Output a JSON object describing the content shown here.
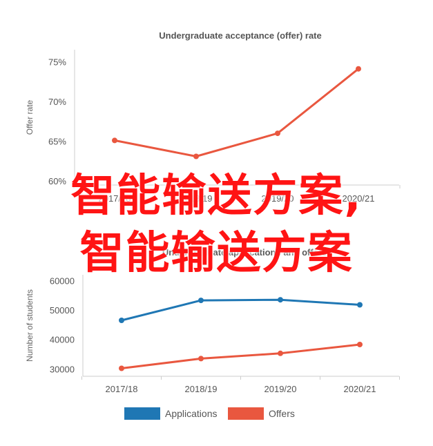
{
  "chart_data": [
    {
      "type": "line",
      "title": "Undergraduate acceptance (offer) rate",
      "ylabel": "Offer rate",
      "xlabel": "",
      "categories": [
        "2017/18",
        "2018/19",
        "2019/20",
        "2020/21"
      ],
      "yticks": [
        "60%",
        "65%",
        "70%",
        "75%"
      ],
      "ylim": [
        0.595,
        0.765
      ],
      "grid": false,
      "series": [
        {
          "values": [
            0.651,
            0.631,
            0.66,
            0.741
          ],
          "color": "#e9573f"
        }
      ]
    },
    {
      "type": "line",
      "title": "Undergraduate applications and offers",
      "ylabel": "Number of students",
      "xlabel": "",
      "categories": [
        "2017/18",
        "2018/19",
        "2019/20",
        "2020/21"
      ],
      "yticks": [
        "30000",
        "40000",
        "50000",
        "60000"
      ],
      "ylim": [
        27500,
        62000
      ],
      "grid": false,
      "legend_position": "bottom",
      "series": [
        {
          "name": "Applications",
          "values": [
            46500,
            53300,
            53500,
            51800
          ],
          "color": "#1f77b4"
        },
        {
          "name": "Offers",
          "values": [
            30200,
            33500,
            35300,
            38300
          ],
          "color": "#e9573f"
        }
      ]
    }
  ],
  "overlay": {
    "line1": "智能输送方案,",
    "line2": "智能输送方案"
  }
}
